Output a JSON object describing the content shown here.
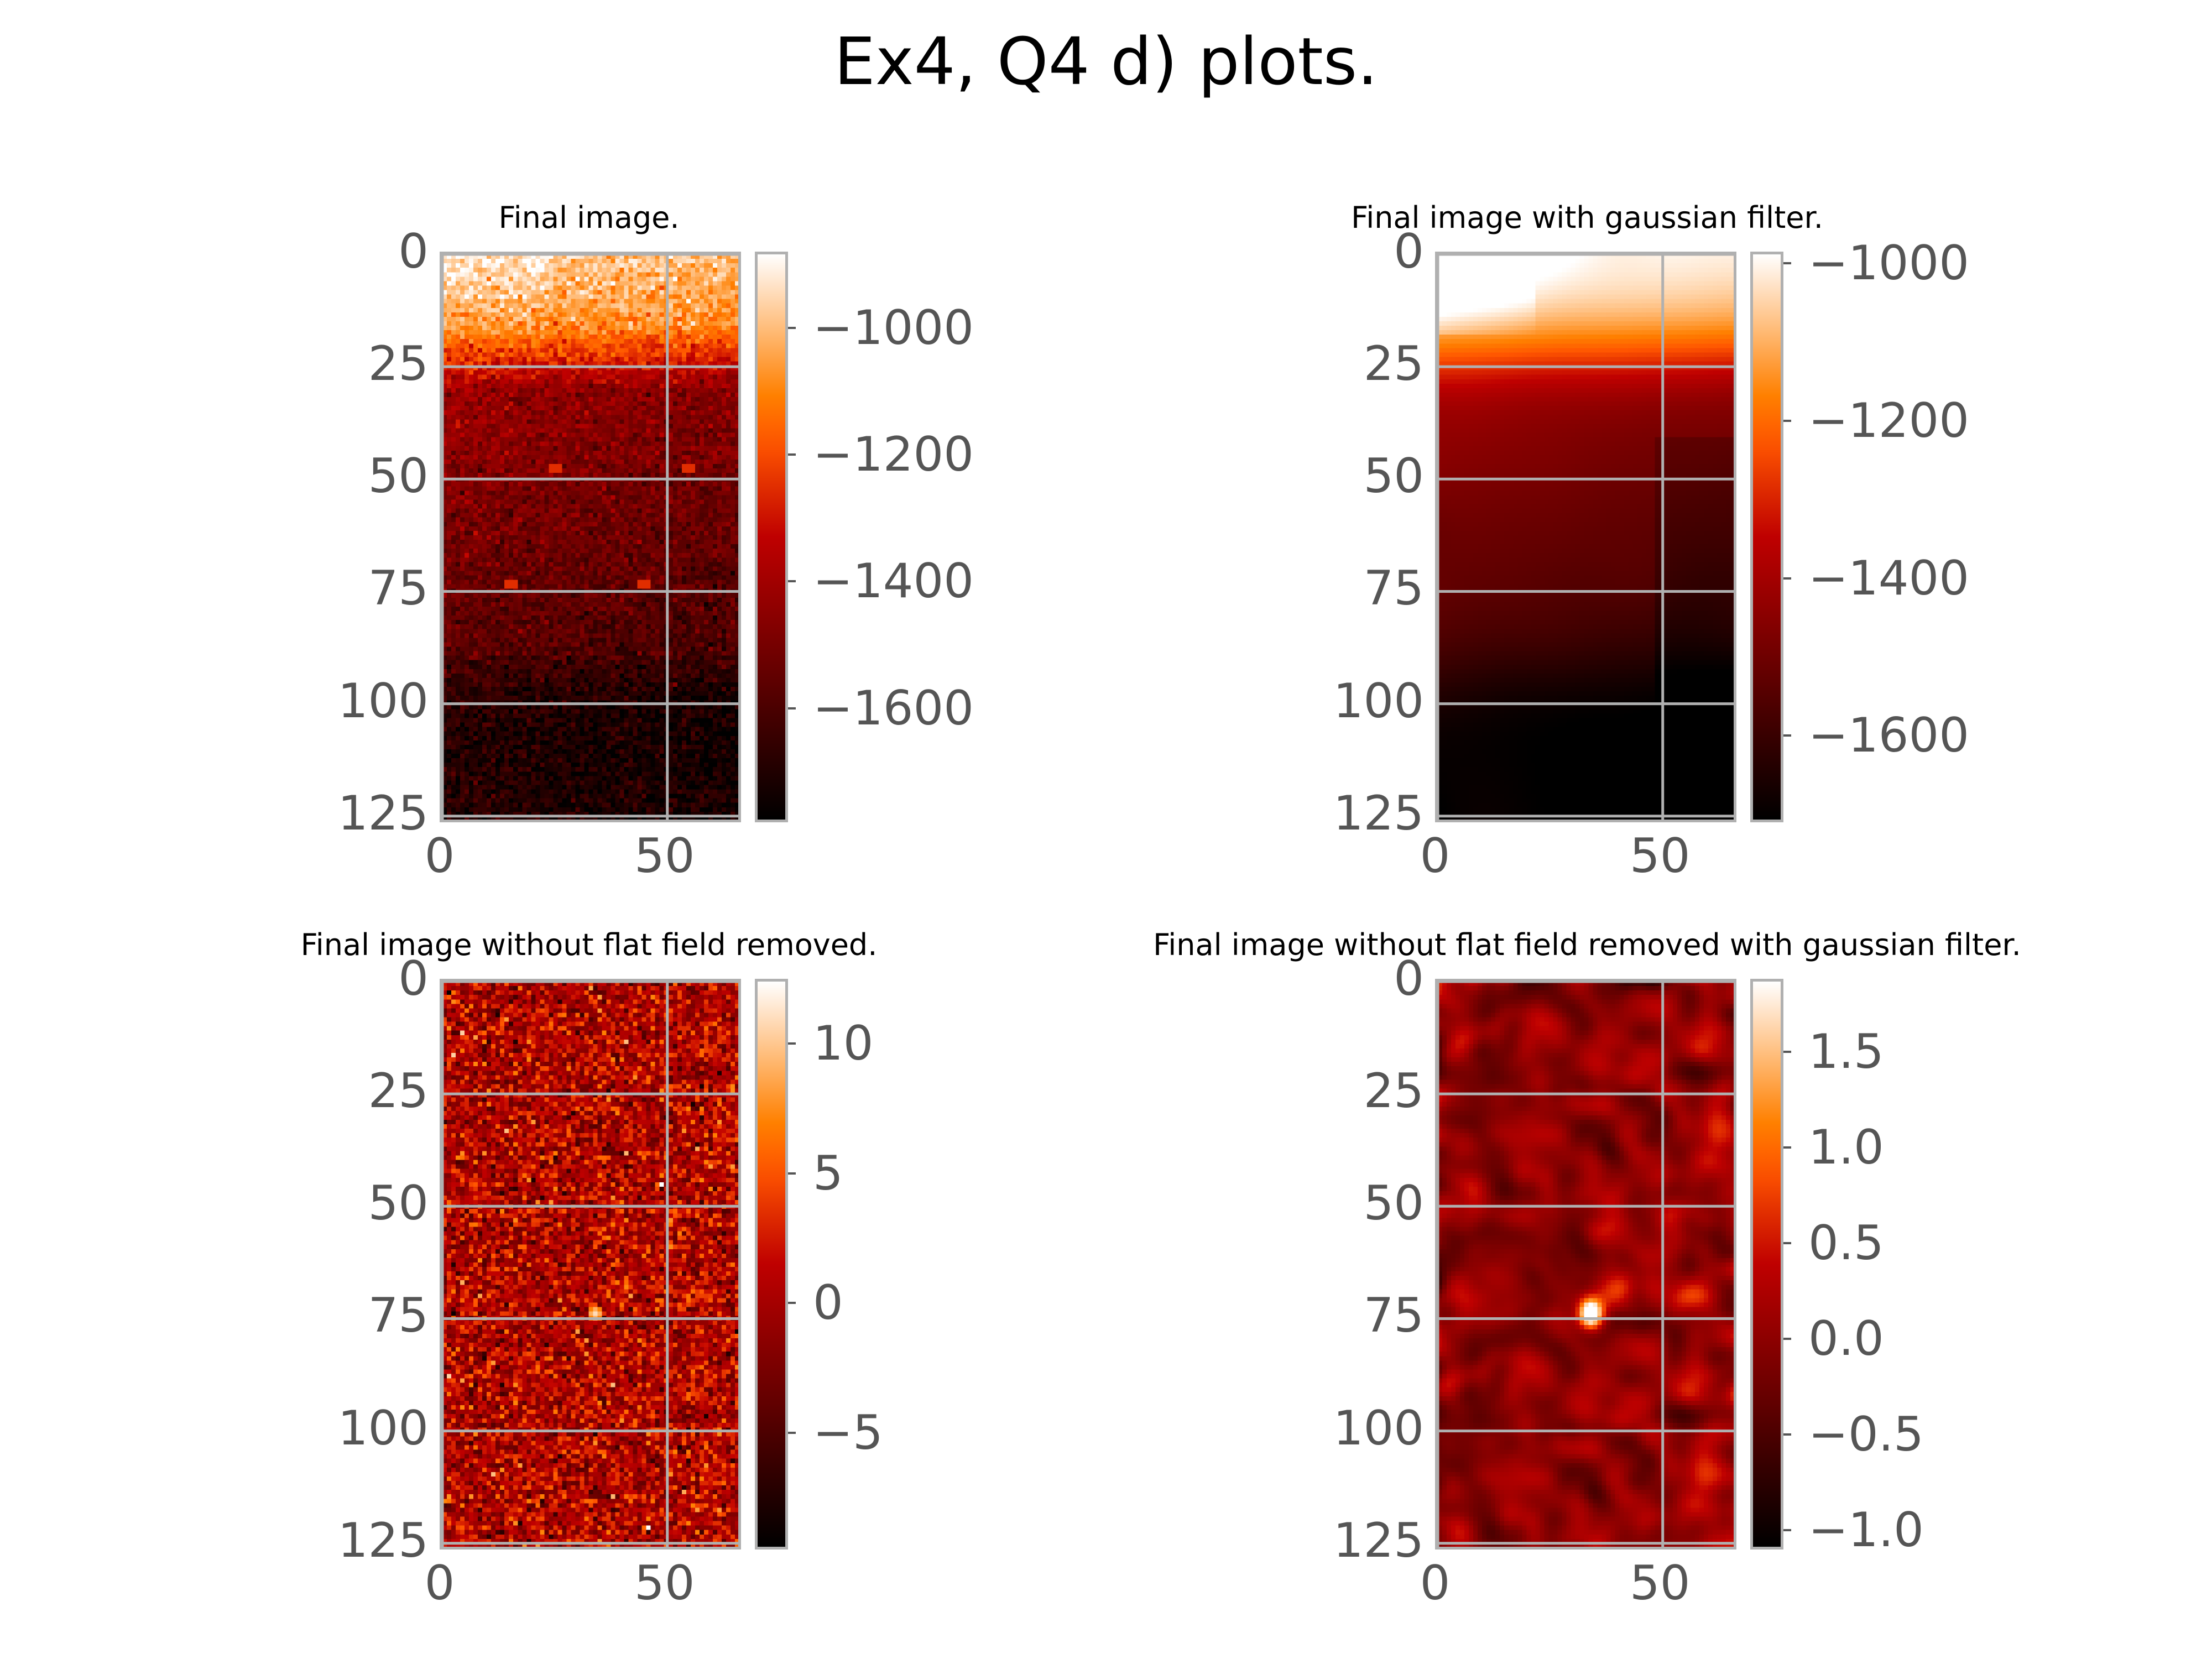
{
  "title": "Ex4, Q4 d) plots.",
  "chart_data": [
    {
      "type": "heatmap",
      "title": "Final image.",
      "colormap": "gist_heat",
      "x_ticks": [
        0,
        50
      ],
      "y_ticks": [
        0,
        25,
        50,
        75,
        100,
        125
      ],
      "xlim": [
        0,
        67
      ],
      "ylim": [
        127,
        0
      ],
      "grid": true,
      "colorbar": {
        "range": [
          -1780,
          -880
        ],
        "ticks": [
          "−1000",
          "−1200",
          "−1400",
          "−1600"
        ],
        "tick_values": [
          -1000,
          -1200,
          -1400,
          -1600
        ]
      },
      "profile": "rows bright (about -950) for y 0-15, orange-red for y 20-30, dark red around -1500 for y 30-85, darkest near -1700 for y 95-127, pixel noise; small bright spots near (25,48), (55,48), (15,74), (45,74)",
      "hot_spots": [
        [
          25,
          48
        ],
        [
          55,
          48
        ],
        [
          15,
          74
        ],
        [
          45,
          74
        ]
      ]
    },
    {
      "type": "heatmap",
      "title": "Final image with gaussian filter.",
      "colormap": "gist_heat",
      "x_ticks": [
        0,
        50
      ],
      "y_ticks": [
        0,
        25,
        50,
        75,
        100,
        125
      ],
      "xlim": [
        0,
        67
      ],
      "ylim": [
        127,
        0
      ],
      "grid": true,
      "colorbar": {
        "range": [
          -1710,
          -985
        ],
        "ticks": [
          "−1000",
          "−1200",
          "−1400",
          "−1600"
        ],
        "tick_values": [
          -1000,
          -1200,
          -1400,
          -1600
        ]
      },
      "profile": "smooth version of the final image: white top-left near -1000, orange along top, red/dark red in the middle, near black at the bottom right around -1700"
    },
    {
      "type": "heatmap",
      "title": "Final image without flat field removed.",
      "colormap": "gist_heat",
      "x_ticks": [
        0,
        50
      ],
      "y_ticks": [
        0,
        25,
        50,
        75,
        100,
        125
      ],
      "xlim": [
        0,
        67
      ],
      "ylim": [
        127,
        0
      ],
      "grid": true,
      "colorbar": {
        "range": [
          -9.5,
          12.5
        ],
        "ticks": [
          "10",
          "5",
          "0",
          "−5"
        ],
        "tick_values": [
          10,
          5,
          0,
          -5
        ]
      },
      "profile": "random noise centred near 0 across the whole frame; a single bright source near (34,74)",
      "hot_spots": [
        [
          34,
          74
        ]
      ]
    },
    {
      "type": "heatmap",
      "title": "Final image without flat field removed with gaussian filter.",
      "colormap": "gist_heat",
      "x_ticks": [
        0,
        50
      ],
      "y_ticks": [
        0,
        25,
        50,
        75,
        100,
        125
      ],
      "xlim": [
        0,
        67
      ],
      "ylim": [
        127,
        0
      ],
      "grid": true,
      "colorbar": {
        "range": [
          -1.1,
          1.88
        ],
        "ticks": [
          "1.5",
          "1.0",
          "0.5",
          "0.0",
          "−0.5",
          "−1.0"
        ],
        "tick_values": [
          1.5,
          1.0,
          0.5,
          0.0,
          -0.5,
          -1.0
        ]
      },
      "profile": "smoothed noise mostly between -0.5 and 0.5 with a bright peak near 1.8 at (34,74)",
      "hot_spots": [
        [
          34,
          74
        ]
      ]
    }
  ]
}
